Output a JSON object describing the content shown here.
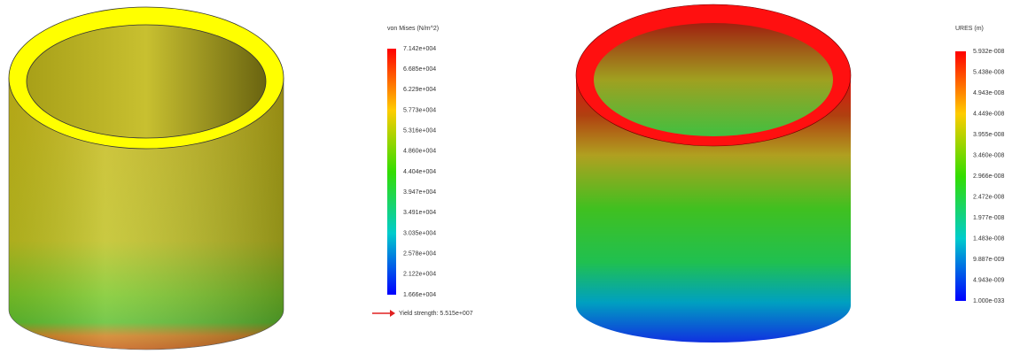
{
  "left_plot": {
    "legend_title": "von Mises (N/m^2)",
    "legend_labels": [
      "7.142e+004",
      "6.685e+004",
      "6.229e+004",
      "5.773e+004",
      "5.316e+004",
      "4.860e+004",
      "4.404e+004",
      "3.947e+004",
      "3.491e+004",
      "3.035e+004",
      "2.578e+004",
      "2.122e+004",
      "1.666e+004"
    ],
    "yield_strength": "Yield strength: 5.515e+007"
  },
  "right_plot": {
    "legend_title": "URES (m)",
    "legend_labels": [
      "5.932e-008",
      "5.438e-008",
      "4.943e-008",
      "4.449e-008",
      "3.955e-008",
      "3.460e-008",
      "2.966e-008",
      "2.472e-008",
      "1.977e-008",
      "1.483e-008",
      "9.887e-009",
      "4.943e-009",
      "1.000e-033"
    ]
  }
}
